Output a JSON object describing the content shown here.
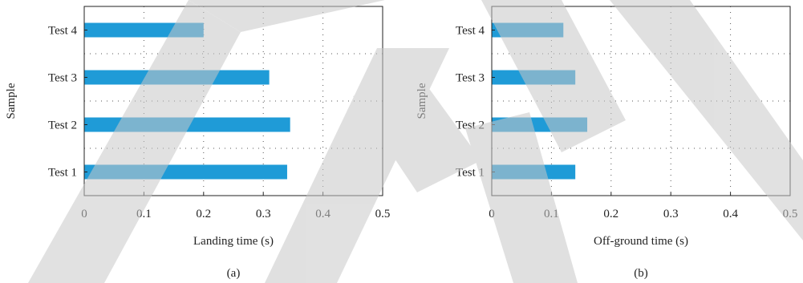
{
  "chart_data": [
    {
      "type": "bar",
      "orientation": "horizontal",
      "categories": [
        "Test 1",
        "Test 2",
        "Test 3",
        "Test 4"
      ],
      "values": [
        0.34,
        0.345,
        0.31,
        0.2
      ],
      "xlabel": "Landing time (s)",
      "ylabel": "Sample",
      "xlim": [
        0,
        0.5
      ],
      "xticks": [
        "0",
        "0.1",
        "0.2",
        "0.3",
        "0.4",
        "0.5"
      ],
      "caption": "(a)",
      "bar_color": "#1f9bd7",
      "grid": "dotted"
    },
    {
      "type": "bar",
      "orientation": "horizontal",
      "categories": [
        "Test 1",
        "Test 2",
        "Test 3",
        "Test 4"
      ],
      "values": [
        0.14,
        0.16,
        0.14,
        0.12
      ],
      "xlabel": "Off-ground time (s)",
      "ylabel": "Sample",
      "xlim": [
        0,
        0.5
      ],
      "xticks": [
        "0",
        "0.1",
        "0.2",
        "0.3",
        "0.4",
        "0.5"
      ],
      "caption": "(b)",
      "bar_color": "#1f9bd7",
      "grid": "dotted"
    }
  ],
  "watermark_color": "#c8c8c8"
}
